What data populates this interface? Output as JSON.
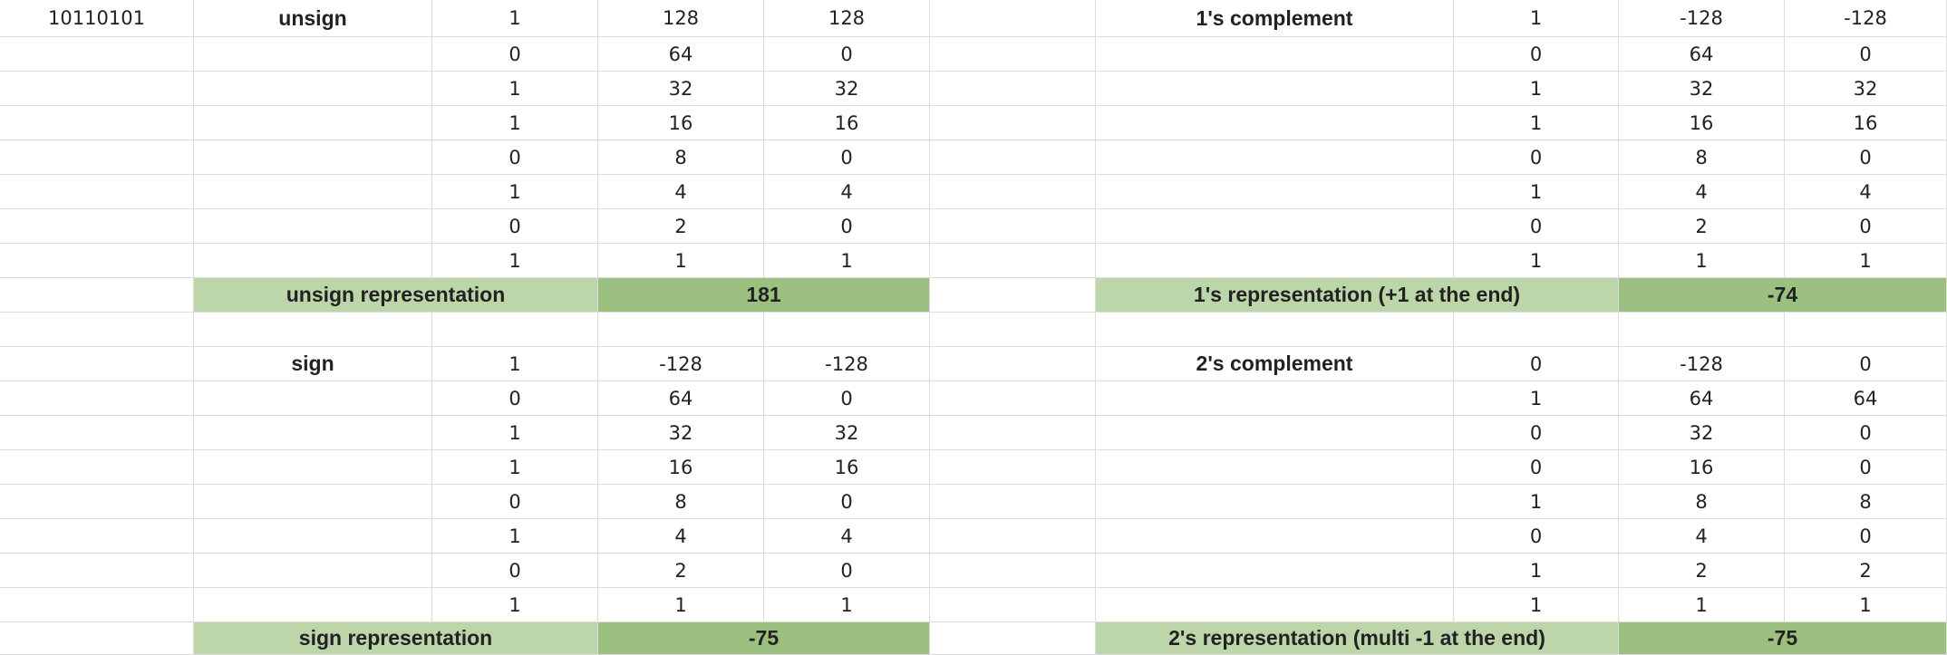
{
  "binary_input": "10110101",
  "colors": {
    "gridline": "#dadce0",
    "label_fill": "#bcd6aa",
    "result_fill": "#9bc080",
    "text": "#222222"
  },
  "blocks": {
    "unsign": {
      "title": "unsign",
      "bits": [
        "1",
        "0",
        "1",
        "1",
        "0",
        "1",
        "0",
        "1"
      ],
      "weights": [
        "128",
        "64",
        "32",
        "16",
        "8",
        "4",
        "2",
        "1"
      ],
      "products": [
        "128",
        "0",
        "32",
        "16",
        "0",
        "4",
        "0",
        "1"
      ],
      "result_label": "unsign representation",
      "result_value": "181"
    },
    "sign": {
      "title": "sign",
      "bits": [
        "1",
        "0",
        "1",
        "1",
        "0",
        "1",
        "0",
        "1"
      ],
      "weights": [
        "-128",
        "64",
        "32",
        "16",
        "8",
        "4",
        "2",
        "1"
      ],
      "products": [
        "-128",
        "0",
        "32",
        "16",
        "0",
        "4",
        "0",
        "1"
      ],
      "result_label": "sign representation",
      "result_value": "-75"
    },
    "ones": {
      "title": "1's complement",
      "bits": [
        "1",
        "0",
        "1",
        "1",
        "0",
        "1",
        "0",
        "1"
      ],
      "weights": [
        "-128",
        "64",
        "32",
        "16",
        "8",
        "4",
        "2",
        "1"
      ],
      "products": [
        "-128",
        "0",
        "32",
        "16",
        "0",
        "4",
        "0",
        "1"
      ],
      "result_label": "1's representation (+1 at the end)",
      "result_value": "-74"
    },
    "twos": {
      "title": "2's complement",
      "bits": [
        "0",
        "1",
        "0",
        "0",
        "1",
        "0",
        "1",
        "1"
      ],
      "weights": [
        "-128",
        "64",
        "32",
        "16",
        "8",
        "4",
        "2",
        "1"
      ],
      "products": [
        "0",
        "64",
        "0",
        "0",
        "8",
        "0",
        "2",
        "1"
      ],
      "result_label": "2's representation (multi -1 at the end)",
      "result_value": "-75"
    }
  }
}
